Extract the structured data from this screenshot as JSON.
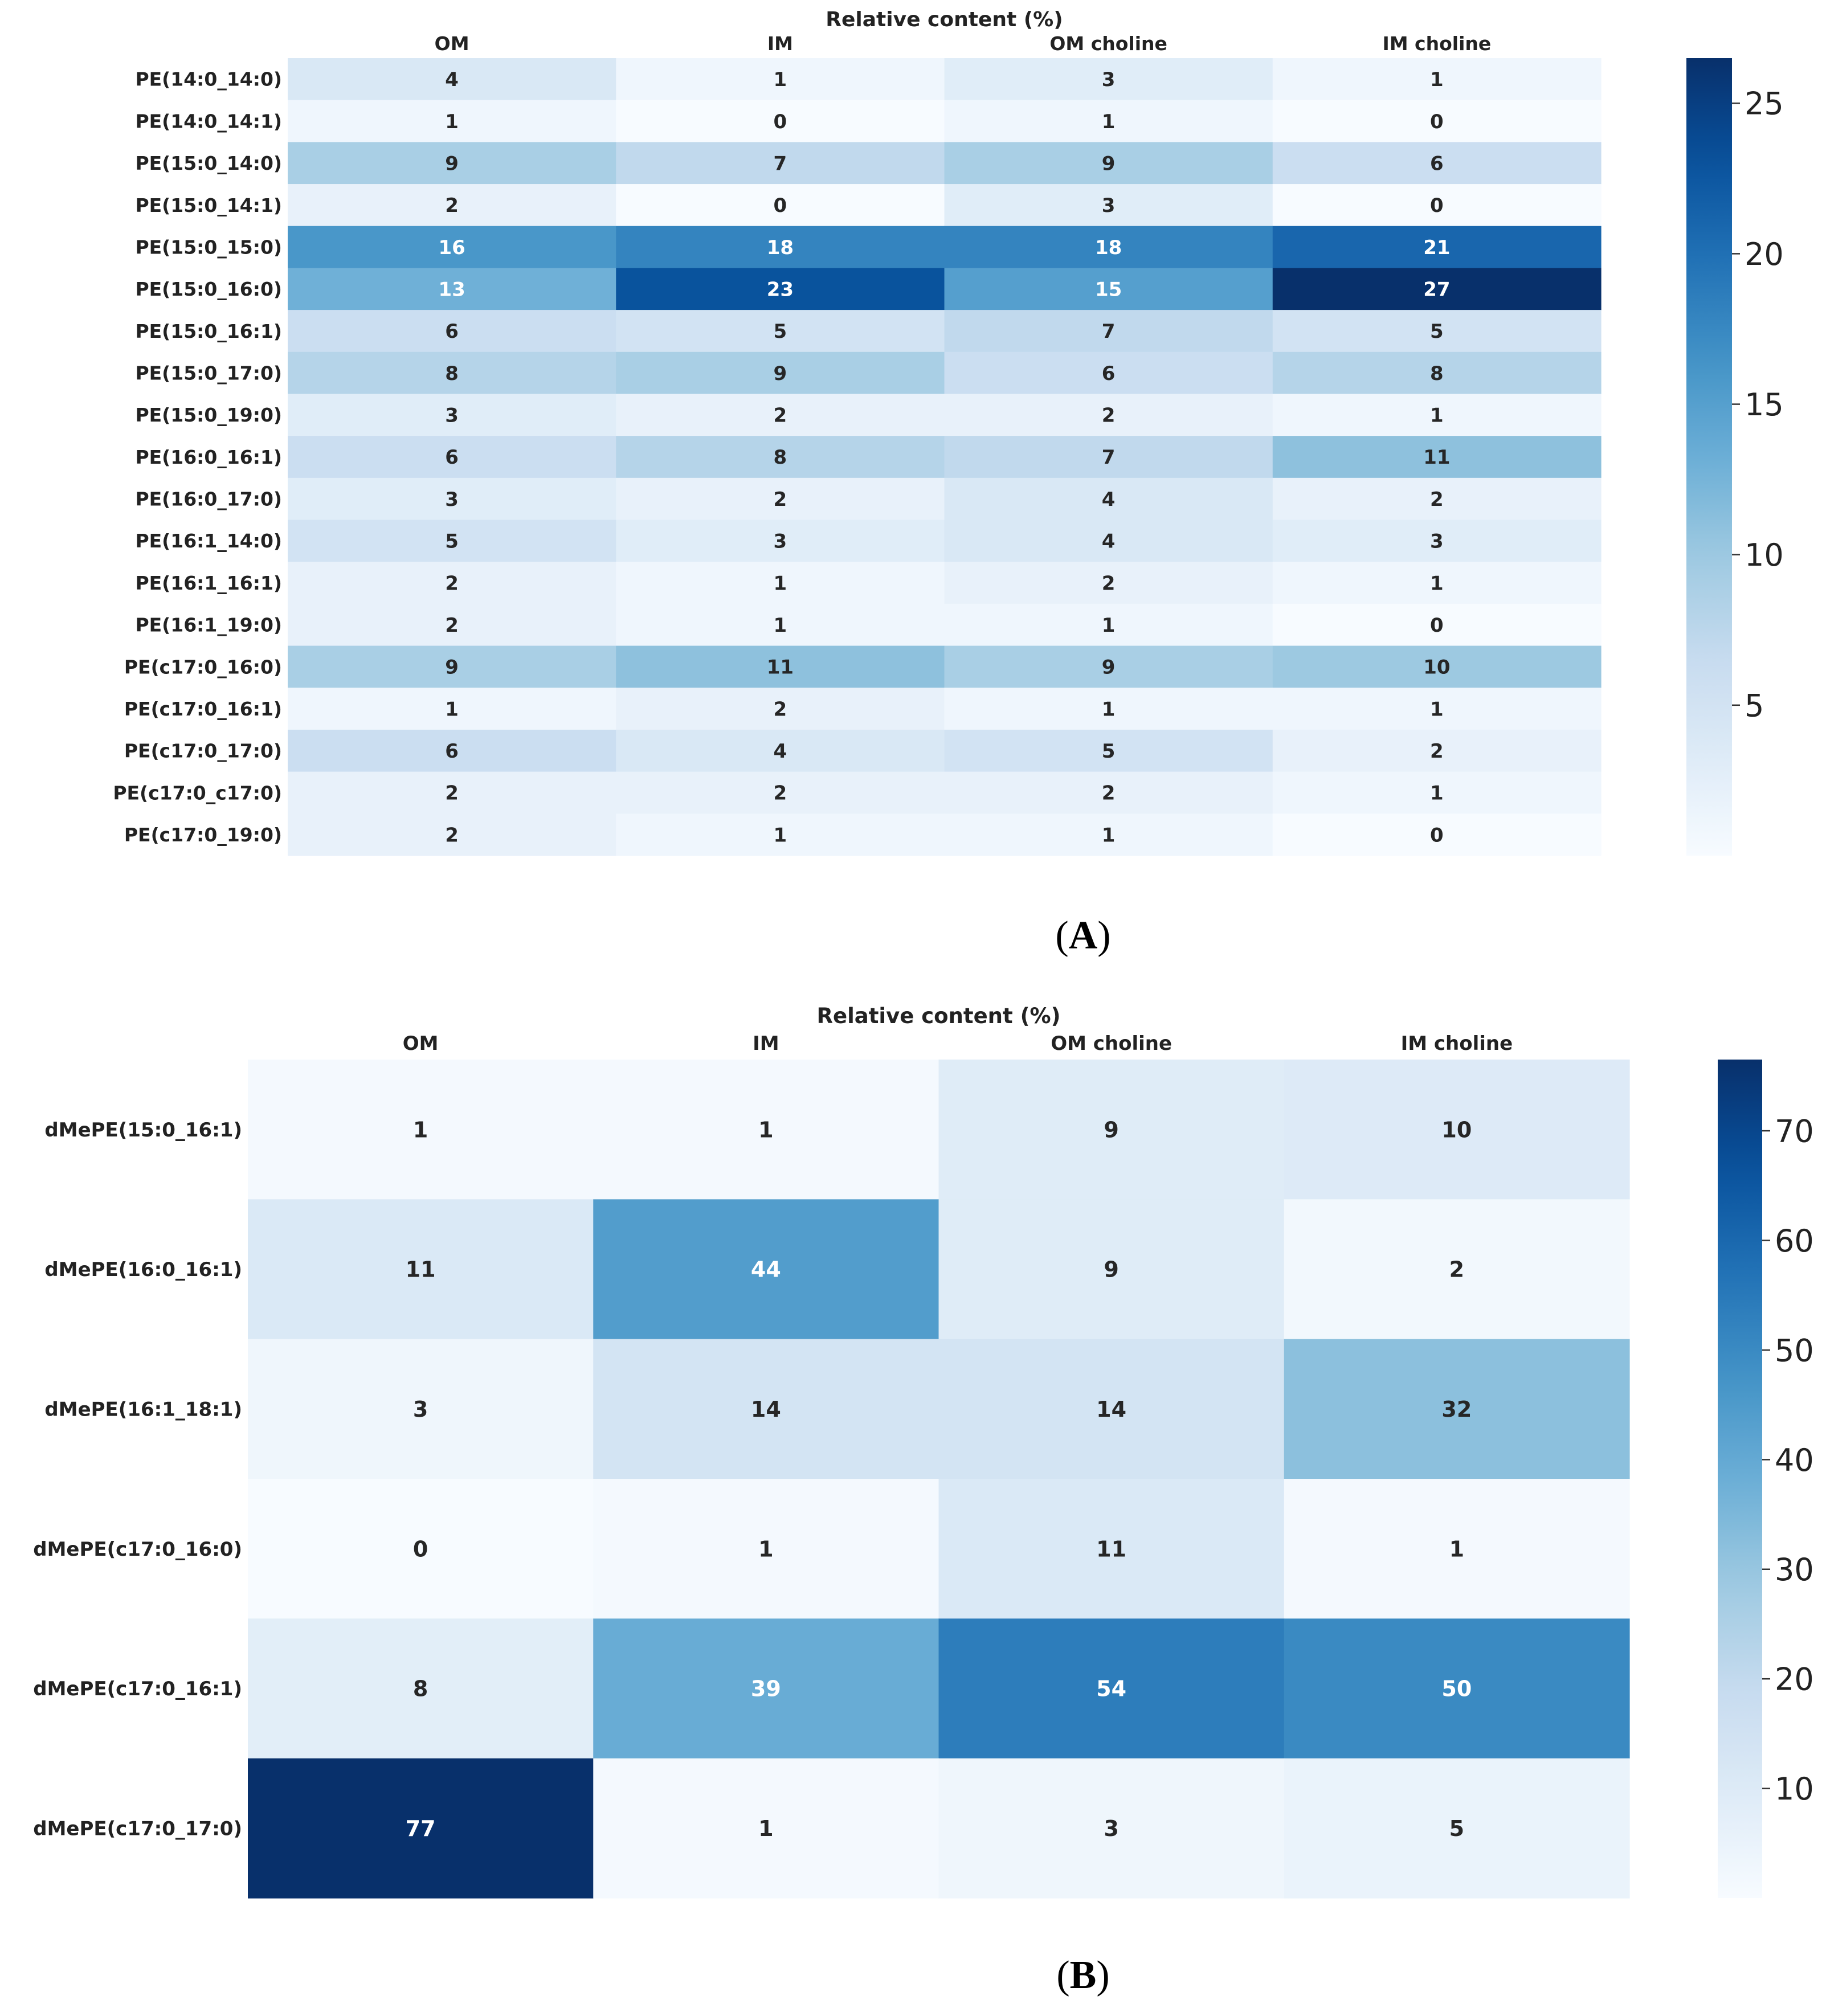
{
  "chart_data": [
    {
      "type": "heatmap",
      "panel_label": "A",
      "title": "Relative content (%)",
      "columns": [
        "OM",
        "IM",
        "OM choline",
        "IM choline"
      ],
      "rows": [
        "PE(14:0_14:0)",
        "PE(14:0_14:1)",
        "PE(15:0_14:0)",
        "PE(15:0_14:1)",
        "PE(15:0_15:0)",
        "PE(15:0_16:0)",
        "PE(15:0_16:1)",
        "PE(15:0_17:0)",
        "PE(15:0_19:0)",
        "PE(16:0_16:1)",
        "PE(16:0_17:0)",
        "PE(16:1_14:0)",
        "PE(16:1_16:1)",
        "PE(16:1_19:0)",
        "PE(c17:0_16:0)",
        "PE(c17:0_16:1)",
        "PE(c17:0_17:0)",
        "PE(c17:0_c17:0)",
        "PE(c17:0_19:0)"
      ],
      "values": [
        [
          4,
          1,
          3,
          1
        ],
        [
          1,
          0,
          1,
          0
        ],
        [
          9,
          7,
          9,
          6
        ],
        [
          2,
          0,
          3,
          0
        ],
        [
          16,
          18,
          18,
          21
        ],
        [
          13,
          23,
          15,
          27
        ],
        [
          6,
          5,
          7,
          5
        ],
        [
          8,
          9,
          6,
          8
        ],
        [
          3,
          2,
          2,
          1
        ],
        [
          6,
          8,
          7,
          11
        ],
        [
          3,
          2,
          4,
          2
        ],
        [
          5,
          3,
          4,
          3
        ],
        [
          2,
          1,
          2,
          1
        ],
        [
          2,
          1,
          1,
          0
        ],
        [
          9,
          11,
          9,
          10
        ],
        [
          1,
          2,
          1,
          1
        ],
        [
          6,
          4,
          5,
          2
        ],
        [
          2,
          2,
          2,
          1
        ],
        [
          2,
          1,
          1,
          0
        ]
      ],
      "colorbar": {
        "min": 0,
        "max": 26.5,
        "ticks": [
          5,
          10,
          15,
          20,
          25
        ]
      },
      "colormap": "Blues"
    },
    {
      "type": "heatmap",
      "panel_label": "B",
      "title": "Relative content (%)",
      "columns": [
        "OM",
        "IM",
        "OM choline",
        "IM choline"
      ],
      "rows": [
        "dMePE(15:0_16:1)",
        "dMePE(16:0_16:1)",
        "dMePE(16:1_18:1)",
        "dMePE(c17:0_16:0)",
        "dMePE(c17:0_16:1)",
        "dMePE(c17:0_17:0)"
      ],
      "values": [
        [
          1,
          1,
          9,
          10
        ],
        [
          11,
          44,
          9,
          2
        ],
        [
          3,
          14,
          14,
          32
        ],
        [
          0,
          1,
          11,
          1
        ],
        [
          8,
          39,
          54,
          50
        ],
        [
          77,
          1,
          3,
          5
        ]
      ],
      "colorbar": {
        "min": 0,
        "max": 76.5,
        "ticks": [
          10,
          20,
          30,
          40,
          50,
          60,
          70
        ]
      },
      "colormap": "Blues"
    }
  ]
}
